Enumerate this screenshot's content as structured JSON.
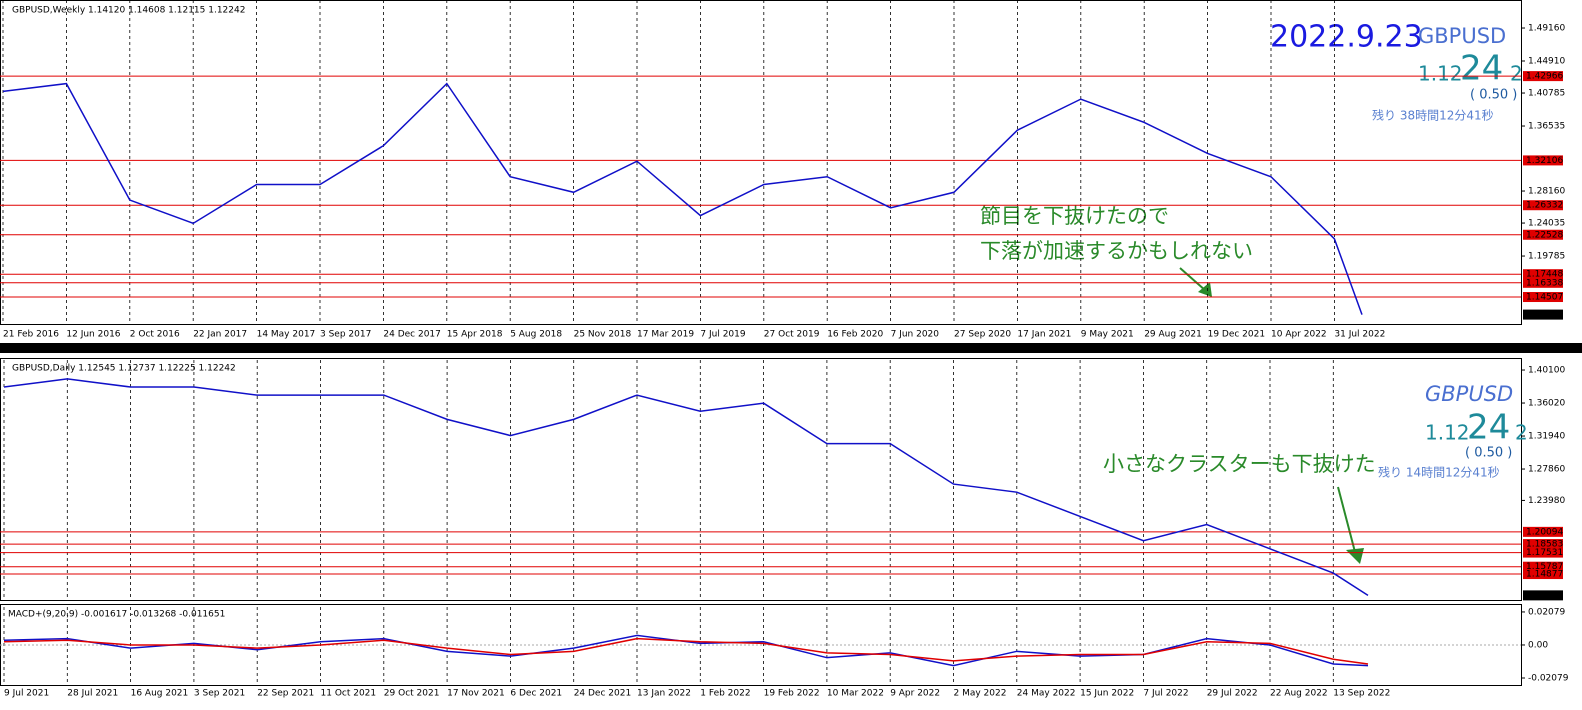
{
  "chart_data": [
    {
      "type": "line",
      "header": "GBPUSD,Weekly  1.14120 1.14608 1.12115 1.12242",
      "categories": [
        "21 Feb 2016",
        "12 Jun 2016",
        "2 Oct 2016",
        "22 Jan 2017",
        "14 May 2017",
        "3 Sep 2017",
        "24 Dec 2017",
        "15 Apr 2018",
        "5 Aug 2018",
        "25 Nov 2018",
        "17 Mar 2019",
        "7 Jul 2019",
        "27 Oct 2019",
        "16 Feb 2020",
        "7 Jun 2020",
        "27 Sep 2020",
        "17 Jan 2021",
        "9 May 2021",
        "29 Aug 2021",
        "19 Dec 2021",
        "10 Apr 2022",
        "31 Jul 2022",
        null
      ],
      "series": [
        {
          "color": "#1010c8",
          "values": [
            1.41,
            1.42,
            1.27,
            1.24,
            1.29,
            1.29,
            1.34,
            1.42,
            1.3,
            1.28,
            1.32,
            1.25,
            1.29,
            1.3,
            1.26,
            1.28,
            1.36,
            1.4,
            1.37,
            1.33,
            1.3,
            1.22,
            1.12242
          ]
        }
      ],
      "ylim": [
        1.1116,
        1.5277
      ],
      "yticks": [
        {
          "value": 1.4916,
          "label": "1.49160"
        },
        {
          "value": 1.4491,
          "label": "1.44910"
        },
        1.40785,
        1.36535,
        {
          "value": 1.2816,
          "label": "1.28160"
        },
        1.24035,
        1.19785
      ],
      "levels": [
        1.42966,
        1.32106,
        1.26332,
        1.22528,
        1.17448,
        1.16338,
        1.14507
      ],
      "level_color": "#e00000",
      "last_price": 1.12242,
      "date": "2022.9.23",
      "symbol": "GBPUSD",
      "price_big": "1.12",
      "price_pips": "24",
      "price_point": "2",
      "change": "( 0.50 )",
      "remaining": "残り 38時間12分41秒",
      "annotations": [
        "節目を下抜けたので",
        "下落が加速するかもしれない"
      ]
    },
    {
      "type": "line",
      "header": "GBPUSD,Daily  1.12545 1.12737 1.12225 1.12242",
      "categories": [
        "9 Jul 2021",
        "28 Jul 2021",
        "16 Aug 2021",
        "3 Sep 2021",
        "22 Sep 2021",
        "11 Oct 2021",
        "29 Oct 2021",
        "17 Nov 2021",
        "6 Dec 2021",
        "24 Dec 2021",
        "13 Jan 2022",
        "1 Feb 2022",
        "19 Feb 2022",
        "10 Mar 2022",
        "9 Apr 2022",
        "2 May 2022",
        "24 May 2022",
        "15 Jun 2022",
        "7 Jul 2022",
        "29 Jul 2022",
        "22 Aug 2022",
        "13 Sep 2022",
        null
      ],
      "series": [
        {
          "color": "#1010c8",
          "values": [
            1.38,
            1.39,
            1.38,
            1.38,
            1.37,
            1.37,
            1.37,
            1.34,
            1.32,
            1.34,
            1.37,
            1.35,
            1.36,
            1.31,
            1.31,
            1.26,
            1.25,
            1.22,
            1.19,
            1.21,
            1.18,
            1.15,
            1.12242
          ]
        }
      ],
      "ylim": [
        1.1167,
        1.4134
      ],
      "yticks": [
        {
          "value": 1.401,
          "label": "1.40100"
        },
        {
          "value": 1.3602,
          "label": "1.36020"
        },
        {
          "value": 1.3194,
          "label": "1.31940"
        },
        {
          "value": 1.2786,
          "label": "1.27860"
        },
        {
          "value": 1.2398,
          "label": "1.23980"
        }
      ],
      "levels": [
        1.20094,
        1.18583,
        1.17531,
        1.15787,
        1.14877
      ],
      "level_color": "#e00000",
      "last_price": 1.12242,
      "symbol": "GBPUSD",
      "price_big": "1.12",
      "price_pips": "24",
      "price_point": "2",
      "change": "( 0.50 )",
      "remaining": "残り 14時間12分41秒",
      "annotations": [
        "小さなクラスターも下抜けた"
      ]
    },
    {
      "type": "line",
      "header": "MACD+(9,20,9) -0.001617 -0.013268 -0.011651",
      "series": [
        {
          "color": "#1010c8",
          "values": [
            0.003,
            0.004,
            -0.002,
            0.001,
            -0.003,
            0.002,
            0.004,
            -0.004,
            -0.007,
            -0.002,
            0.006,
            0.001,
            0.002,
            -0.008,
            -0.005,
            -0.013,
            -0.004,
            -0.007,
            -0.006,
            0.004,
            0.0,
            -0.012,
            -0.013
          ]
        },
        {
          "color": "#e00000",
          "values": [
            0.002,
            0.003,
            0.0,
            0.0,
            -0.002,
            0.0,
            0.003,
            -0.002,
            -0.006,
            -0.004,
            0.004,
            0.002,
            0.001,
            -0.005,
            -0.006,
            -0.01,
            -0.007,
            -0.006,
            -0.006,
            0.002,
            0.001,
            -0.009,
            -0.012
          ]
        }
      ],
      "ylim": [
        -0.0252,
        0.0239
      ],
      "yticks": [
        0.02079,
        {
          "value": 0,
          "label": "0.00"
        },
        -0.02079
      ]
    }
  ]
}
